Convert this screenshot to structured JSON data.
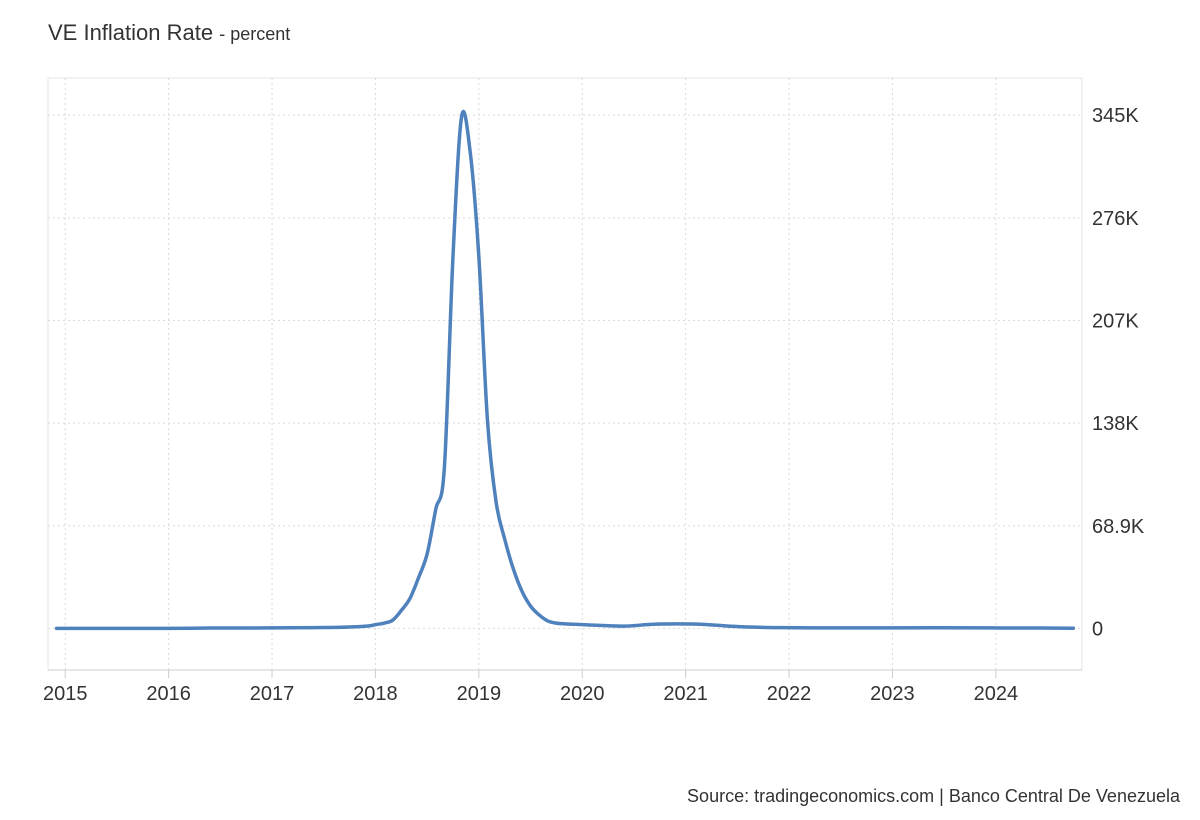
{
  "chart": {
    "title": "VE Inflation Rate",
    "subtitle": "- percent",
    "source": "Source: tradingeconomics.com | Banco Central De Venezuela"
  },
  "chart_data": {
    "type": "line",
    "title": "VE Inflation Rate",
    "subtitle": "- percent",
    "xlabel": "",
    "ylabel": "",
    "x_ticks": [
      "2015",
      "2016",
      "2017",
      "2018",
      "2019",
      "2020",
      "2021",
      "2022",
      "2023",
      "2024"
    ],
    "y_ticks": [
      {
        "value": 0,
        "label": "0"
      },
      {
        "value": 68900,
        "label": "68.9K"
      },
      {
        "value": 138000,
        "label": "138K"
      },
      {
        "value": 207000,
        "label": "207K"
      },
      {
        "value": 276000,
        "label": "276K"
      },
      {
        "value": 345000,
        "label": "345K"
      }
    ],
    "xlim": [
      "2014-11",
      "2024-11"
    ],
    "ylim": [
      -28000,
      370000
    ],
    "grid": true,
    "y_axis_side": "right",
    "line_color": "#4f81bd",
    "series": [
      {
        "x": [
          "2014-12",
          "2015-06",
          "2016-01",
          "2016-06",
          "2017-01",
          "2017-06",
          "2017-09",
          "2017-12",
          "2018-01",
          "2018-02",
          "2018-03",
          "2018-04",
          "2018-05",
          "2018-06",
          "2018-07",
          "2018-08",
          "2018-09",
          "2018-10",
          "2018-11",
          "2018-12",
          "2019-01",
          "2019-02",
          "2019-03",
          "2019-04",
          "2019-05",
          "2019-06",
          "2019-07",
          "2019-08",
          "2019-09",
          "2019-10",
          "2019-11",
          "2019-12",
          "2020-01",
          "2020-03",
          "2020-06",
          "2020-09",
          "2020-12",
          "2021-03",
          "2021-06",
          "2021-09",
          "2021-12",
          "2022-06",
          "2022-12",
          "2023-06",
          "2023-12",
          "2024-06",
          "2024-10"
        ],
        "y": [
          0,
          0,
          0,
          200,
          300,
          500,
          700,
          1500,
          2500,
          3500,
          5500,
          12000,
          20000,
          34000,
          50000,
          80000,
          108000,
          250000,
          344000,
          320000,
          250000,
          140000,
          85000,
          60000,
          40000,
          25000,
          15000,
          9000,
          5000,
          3500,
          3000,
          2800,
          2500,
          2000,
          1500,
          2700,
          3000,
          2700,
          1500,
          800,
          500,
          300,
          300,
          400,
          300,
          200,
          100
        ]
      }
    ]
  }
}
